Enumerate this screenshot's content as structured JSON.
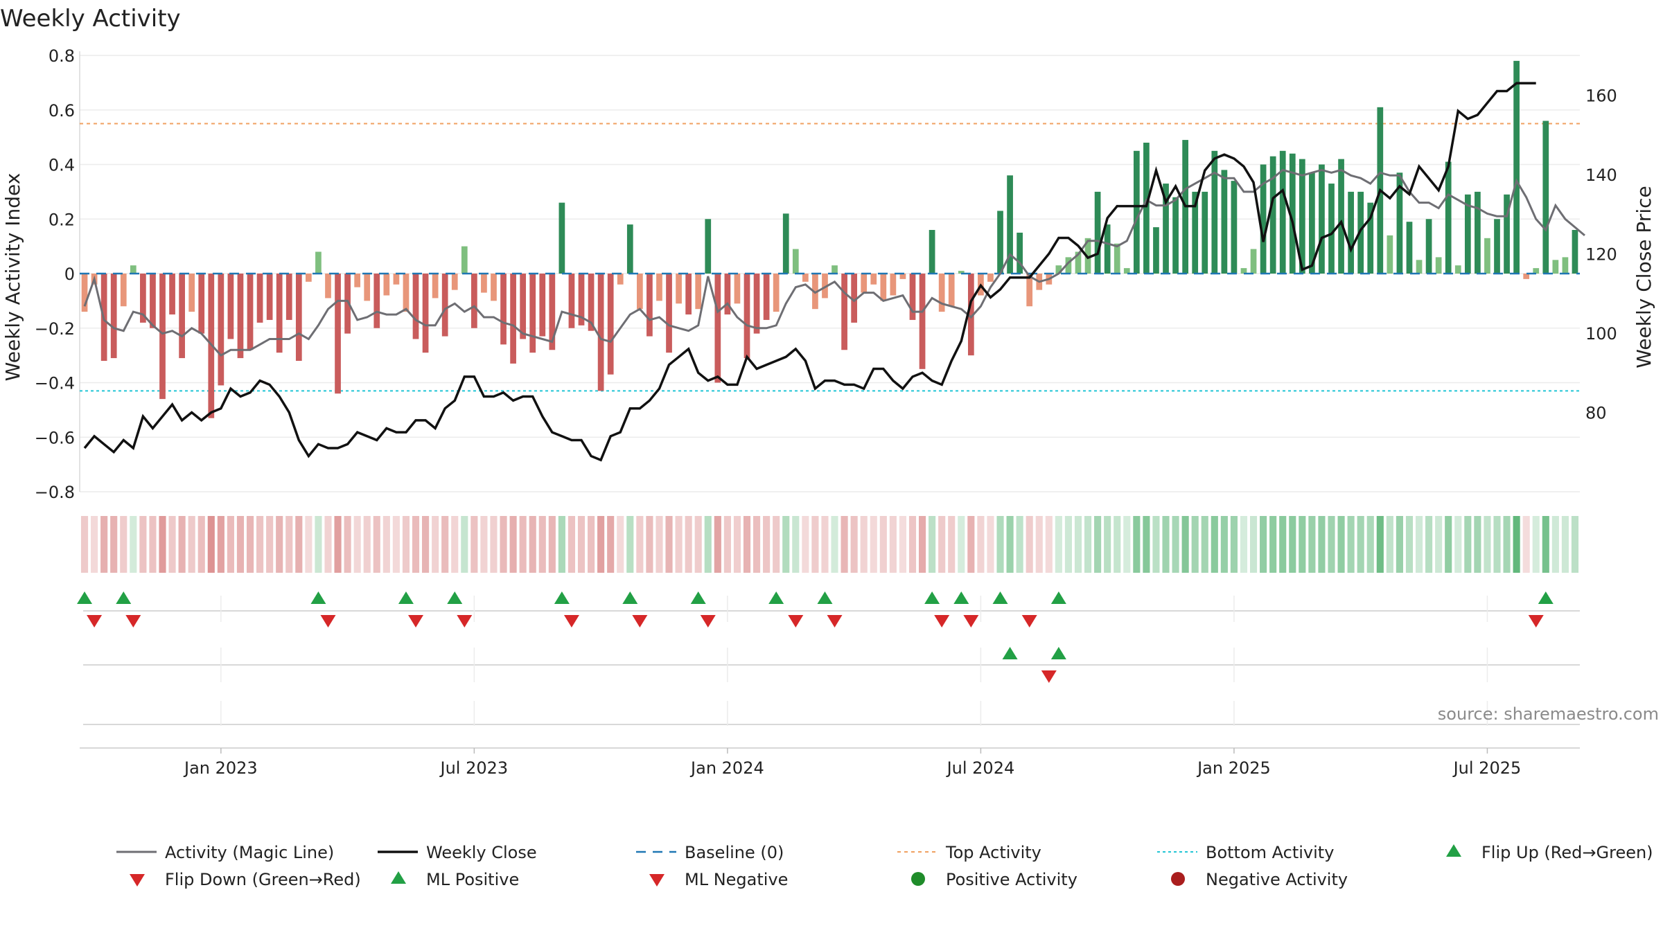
{
  "chart_data": {
    "type": "bar",
    "title": "Weekly Activity",
    "ylabel": "Weekly Activity Index",
    "y2label": "Weekly Close Price",
    "ylim": [
      -0.8,
      0.8
    ],
    "y2lim": [
      60,
      170
    ],
    "yticks": [
      "0.8",
      "0.6",
      "0.4",
      "0.2",
      "0",
      "−0.2",
      "−0.4",
      "−0.6",
      "−0.8"
    ],
    "ytick_values": [
      0.8,
      0.6,
      0.4,
      0.2,
      0,
      -0.2,
      -0.4,
      -0.6,
      -0.8
    ],
    "y2ticks": [
      "160",
      "140",
      "120",
      "100",
      "80"
    ],
    "y2tick_values": [
      160,
      140,
      120,
      100,
      80
    ],
    "xticks": [
      "Jan 2023",
      "Jul 2023",
      "Jan 2024",
      "Jul 2024",
      "Jan 2025",
      "Jul 2025"
    ],
    "xtick_weeks": [
      14.5,
      40.5,
      66.5,
      92.5,
      118.5,
      144.5
    ],
    "baseline": 0,
    "top_activity": 0.55,
    "bottom_activity": -0.43,
    "activity": [
      -0.14,
      -0.04,
      -0.32,
      -0.31,
      -0.12,
      0.03,
      -0.18,
      -0.2,
      -0.46,
      -0.15,
      -0.31,
      -0.14,
      -0.22,
      -0.53,
      -0.41,
      -0.24,
      -0.31,
      -0.28,
      -0.18,
      -0.17,
      -0.29,
      -0.17,
      -0.32,
      -0.03,
      0.08,
      -0.09,
      -0.44,
      -0.22,
      -0.05,
      -0.1,
      -0.2,
      -0.08,
      -0.04,
      -0.14,
      -0.24,
      -0.29,
      -0.09,
      -0.23,
      -0.06,
      0.1,
      -0.2,
      -0.07,
      -0.1,
      -0.26,
      -0.33,
      -0.24,
      -0.29,
      -0.23,
      -0.28,
      0.26,
      -0.2,
      -0.19,
      -0.21,
      -0.43,
      -0.37,
      -0.04,
      0.18,
      -0.13,
      -0.23,
      -0.1,
      -0.29,
      -0.11,
      -0.15,
      -0.13,
      0.2,
      -0.4,
      -0.15,
      -0.11,
      -0.31,
      -0.22,
      -0.17,
      -0.14,
      0.22,
      0.09,
      -0.03,
      -0.13,
      -0.09,
      0.03,
      -0.28,
      -0.18,
      -0.07,
      -0.04,
      -0.1,
      -0.08,
      -0.02,
      -0.17,
      -0.35,
      0.16,
      -0.14,
      -0.12,
      0.01,
      -0.3,
      -0.08,
      -0.03,
      0.23,
      0.36,
      0.15,
      -0.12,
      -0.06,
      -0.04,
      0.03,
      0.06,
      0.08,
      0.13,
      0.3,
      0.18,
      0.11,
      0.02,
      0.45,
      0.48,
      0.17,
      0.33,
      0.28,
      0.49,
      0.3,
      0.3,
      0.45,
      0.38,
      0.34,
      0.02,
      0.09,
      0.4,
      0.43,
      0.45,
      0.44,
      0.42,
      0.37,
      0.4,
      0.33,
      0.42,
      0.3,
      0.3,
      0.26,
      0.61,
      0.14,
      0.37,
      0.19,
      0.05,
      0.2,
      0.06,
      0.41,
      0.03,
      0.29,
      0.3,
      0.13,
      0.2,
      0.29,
      0.78,
      -0.02,
      0.02,
      0.56,
      0.05,
      0.06,
      0.16
    ],
    "magic_line": [
      -0.12,
      -0.02,
      -0.17,
      -0.2,
      -0.21,
      -0.14,
      -0.15,
      -0.19,
      -0.22,
      -0.21,
      -0.23,
      -0.2,
      -0.22,
      -0.26,
      -0.3,
      -0.28,
      -0.28,
      -0.28,
      -0.26,
      -0.24,
      -0.24,
      -0.24,
      -0.22,
      -0.24,
      -0.19,
      -0.13,
      -0.1,
      -0.1,
      -0.17,
      -0.16,
      -0.14,
      -0.15,
      -0.15,
      -0.13,
      -0.17,
      -0.19,
      -0.19,
      -0.13,
      -0.11,
      -0.14,
      -0.12,
      -0.16,
      -0.16,
      -0.18,
      -0.19,
      -0.22,
      -0.23,
      -0.24,
      -0.25,
      -0.14,
      -0.15,
      -0.16,
      -0.18,
      -0.24,
      -0.25,
      -0.2,
      -0.15,
      -0.13,
      -0.17,
      -0.16,
      -0.19,
      -0.2,
      -0.21,
      -0.19,
      -0.01,
      -0.14,
      -0.11,
      -0.16,
      -0.19,
      -0.2,
      -0.2,
      -0.19,
      -0.11,
      -0.05,
      -0.04,
      -0.07,
      -0.05,
      -0.03,
      -0.07,
      -0.1,
      -0.07,
      -0.07,
      -0.1,
      -0.09,
      -0.08,
      -0.14,
      -0.14,
      -0.09,
      -0.11,
      -0.12,
      -0.13,
      -0.16,
      -0.12,
      -0.05,
      0.0,
      0.07,
      0.04,
      -0.01,
      -0.03,
      -0.02,
      0.0,
      0.04,
      0.07,
      0.12,
      0.12,
      0.11,
      0.1,
      0.12,
      0.2,
      0.27,
      0.25,
      0.25,
      0.27,
      0.31,
      0.33,
      0.35,
      0.37,
      0.35,
      0.35,
      0.3,
      0.3,
      0.33,
      0.35,
      0.38,
      0.37,
      0.36,
      0.37,
      0.38,
      0.37,
      0.38,
      0.36,
      0.35,
      0.33,
      0.37,
      0.36,
      0.36,
      0.3,
      0.26,
      0.26,
      0.24,
      0.29,
      0.27,
      0.25,
      0.24,
      0.22,
      0.21,
      0.21,
      0.34,
      0.28,
      0.2,
      0.16,
      0.25,
      0.2,
      0.17,
      0.14
    ],
    "weekly_close": [
      71,
      74,
      72,
      70,
      73,
      71,
      79,
      76,
      79,
      82,
      78,
      80,
      78,
      80,
      81,
      86,
      84,
      85,
      88,
      87,
      84,
      80,
      73,
      69,
      72,
      71,
      71,
      72,
      75,
      74,
      73,
      76,
      75,
      75,
      78,
      78,
      76,
      81,
      83,
      89,
      89,
      84,
      84,
      85,
      83,
      84,
      84,
      79,
      75,
      74,
      73,
      73,
      69,
      68,
      74,
      75,
      81,
      81,
      83,
      86,
      92,
      94,
      96,
      90,
      88,
      89,
      87,
      87,
      94,
      91,
      92,
      93,
      94,
      96,
      93,
      86,
      88,
      88,
      87,
      87,
      86,
      91,
      91,
      88,
      86,
      89,
      90,
      88,
      87,
      93,
      98,
      108,
      112,
      109,
      111,
      114,
      114,
      114,
      117,
      120,
      124,
      124,
      122,
      119,
      120,
      129,
      132,
      132,
      132,
      132,
      141,
      133,
      137,
      132,
      132,
      141,
      144,
      145,
      144,
      142,
      138,
      123,
      134,
      136,
      128,
      116,
      117,
      124,
      125,
      128,
      121,
      126,
      129,
      136,
      134,
      137,
      135,
      142,
      139,
      136,
      142,
      156,
      154,
      155,
      158,
      161,
      161,
      163,
      163,
      163
    ],
    "flip_up": [
      0,
      4,
      24,
      33,
      38,
      49,
      56,
      63,
      71,
      76,
      87,
      90,
      94,
      100,
      150
    ],
    "flip_down": [
      1,
      5,
      25,
      34,
      39,
      50,
      57,
      64,
      73,
      77,
      88,
      91,
      97,
      149
    ],
    "ml_positive": [
      95,
      100
    ],
    "ml_negative": [
      99
    ],
    "legend": [
      "Activity (Magic Line)",
      "Weekly Close",
      "Baseline (0)",
      "Top Activity",
      "Bottom Activity",
      "Flip Up (Red→Green)",
      "Flip Down (Green→Red)",
      "ML Positive",
      "ML Negative",
      "Positive Activity",
      "Negative Activity"
    ],
    "source": "source: sharemaestro.com"
  },
  "colors": {
    "pos_strong": "#2e8b57",
    "pos_light": "#7fbf7f",
    "neg_strong": "#c95c5c",
    "neg_light": "#e8967a",
    "magic_line": "#6e6e73",
    "close": "#111111",
    "baseline": "#1f77b4",
    "top": "#f0a060",
    "bottom": "#22c5d5",
    "up": "#22a045",
    "down": "#d62728",
    "pos_dot": "#1f8c2a",
    "neg_dot": "#aa1e1e"
  }
}
